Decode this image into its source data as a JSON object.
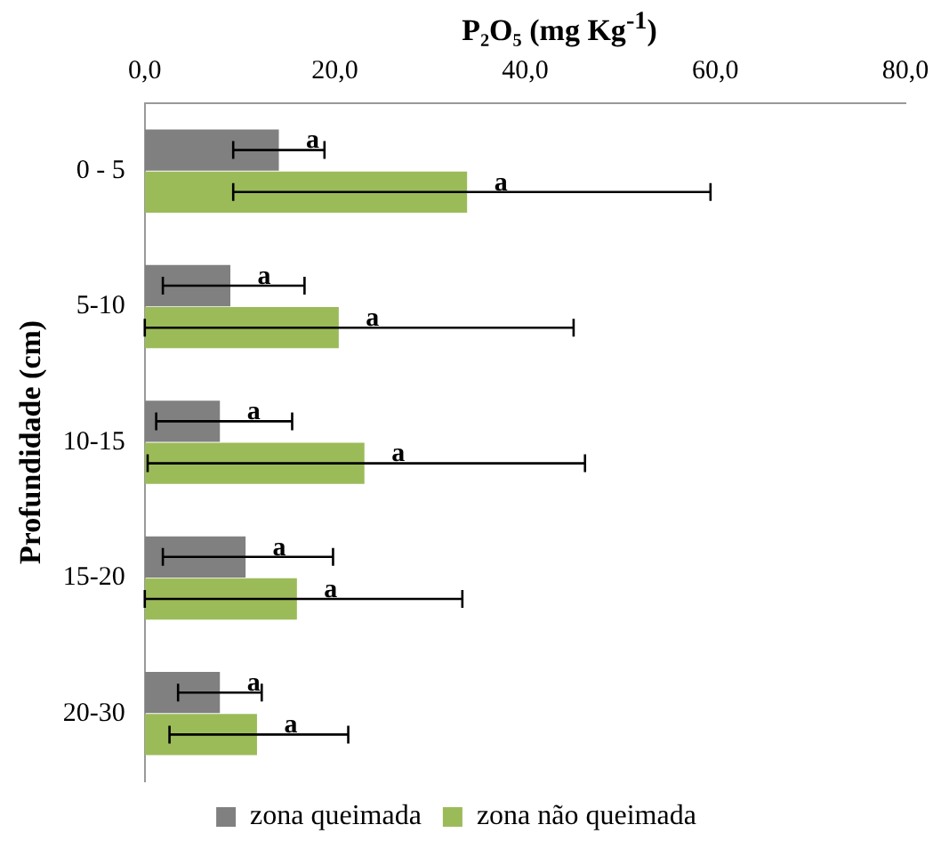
{
  "chart_data": {
    "type": "bar",
    "orientation": "horizontal",
    "title": "P₂O₅ (mg Kg$^{-1}$)",
    "ylabel": "Profundidade (cm)",
    "categories": [
      "0 - 5",
      "5-10",
      "10-15",
      "15-20",
      "20-30"
    ],
    "series": [
      {
        "name": "zona queimada",
        "color": "#808080",
        "values": [
          14.1,
          9.0,
          7.9,
          10.6,
          7.9
        ],
        "errors": [
          [
            9.3,
            18.9
          ],
          [
            1.9,
            16.8
          ],
          [
            1.2,
            15.5
          ],
          [
            1.9,
            19.8
          ],
          [
            3.5,
            12.3
          ]
        ],
        "value_labels": [
          "a",
          "a",
          "a",
          "a",
          "a"
        ]
      },
      {
        "name": "zona não queimada",
        "color": "#9bbb59",
        "values": [
          33.9,
          20.4,
          23.1,
          16.0,
          11.8
        ],
        "errors": [
          [
            9.3,
            59.5
          ],
          [
            0,
            45.1
          ],
          [
            0.3,
            46.3
          ],
          [
            0,
            33.4
          ],
          [
            2.6,
            21.4
          ]
        ],
        "value_labels": [
          "a",
          "a",
          "a",
          "a",
          "a"
        ]
      }
    ],
    "xlim": [
      0,
      80
    ],
    "xticks": [
      {
        "value": 0,
        "label": "0,0"
      },
      {
        "value": 20,
        "label": "20,0"
      },
      {
        "value": 40,
        "label": "40,0"
      },
      {
        "value": 60,
        "label": "60,0"
      },
      {
        "value": 80,
        "label": "80,0"
      }
    ],
    "grid": false,
    "legend": "bottom"
  }
}
